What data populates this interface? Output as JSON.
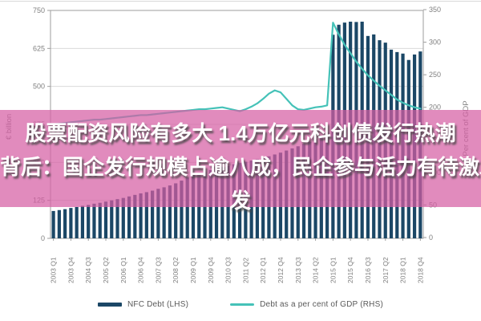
{
  "overlay": {
    "line1": "股票配资风险有多大 1.4万亿元科创债发行热潮",
    "line2": "背后：国企发行规模占逾八成，民企参与活力有待激发",
    "line3": "发",
    "band_rgba": "rgba(213,94,164,0.72)",
    "text_color": "#ffffff"
  },
  "legend_items": [
    {
      "label": "NFC Debt (LHS)",
      "color": "#1b4766",
      "type": "bar"
    },
    {
      "label": "Debt as a per cent of GDP (RHS)",
      "color": "#45c2b8",
      "type": "line"
    }
  ],
  "chart_data": {
    "type": "bar+line combo, quarterly 2003 Q1 - 2018 Q4 (64 points)",
    "title": "",
    "grid": "horizontal gridlines on, plot area boxed",
    "colors": {
      "bars": "#1b4766",
      "line": "#45c2b8",
      "axis_text": "#7f7f7f",
      "gridline": "#d9d9d9",
      "axis_line": "#9e9e9e"
    },
    "left_axis": {
      "title": "€ billion",
      "min": 0,
      "max": 750,
      "step": 125,
      "ticks": [
        0,
        125,
        250,
        375,
        500,
        625,
        750
      ]
    },
    "right_axis": {
      "title": "Per cent of GDP",
      "min": 0,
      "max": 350,
      "step": 50,
      "ticks": [
        0,
        50,
        100,
        150,
        200,
        250,
        300,
        350
      ]
    },
    "x_tick_labels": [
      "2003 Q1",
      "2003 Q4",
      "2004 Q3",
      "2005 Q2",
      "2006 Q1",
      "2006 Q4",
      "2007 Q3",
      "2008 Q2",
      "2009 Q1",
      "2009 Q4",
      "2010 Q3",
      "2011 Q2",
      "2012 Q1",
      "2012 Q4",
      "2013 Q3",
      "2014 Q2",
      "2015 Q1",
      "2015 Q4",
      "2016 Q3",
      "2017 Q2",
      "2018 Q1",
      "2018 Q4"
    ],
    "x_tick_every": 3,
    "series": [
      {
        "name": "NFC Debt (LHS)",
        "type": "bar",
        "axis": "left",
        "color": "#1b4766",
        "values": [
          90,
          93,
          96,
          100,
          103,
          107,
          110,
          114,
          117,
          121,
          125,
          129,
          133,
          138,
          143,
          148,
          152,
          157,
          163,
          168,
          174,
          181,
          190,
          200,
          209,
          215,
          220,
          225,
          229,
          234,
          239,
          244,
          248,
          252,
          256,
          260,
          265,
          270,
          276,
          282,
          289,
          296,
          303,
          311,
          318,
          327,
          337,
          350,
          670,
          703,
          710,
          713,
          712,
          713,
          666,
          671,
          652,
          644,
          621,
          613,
          608,
          587,
          605,
          615
        ]
      },
      {
        "name": "Debt as a per cent of GDP (RHS)",
        "type": "line",
        "axis": "right",
        "color": "#45c2b8",
        "values": [
          174,
          175,
          176,
          177,
          178,
          179,
          180,
          181,
          181,
          182,
          183,
          184,
          185,
          186,
          187,
          188,
          188,
          189,
          190,
          191,
          192,
          193,
          194,
          195,
          196,
          197,
          197,
          198,
          199,
          200,
          198,
          196,
          194,
          197,
          201,
          206,
          213,
          221,
          226,
          223,
          213,
          203,
          197,
          196,
          198,
          200,
          201,
          203,
          330,
          312,
          296,
          283,
          270,
          259,
          249,
          241,
          233,
          226,
          219,
          212,
          207,
          203,
          200,
          198
        ]
      }
    ]
  }
}
